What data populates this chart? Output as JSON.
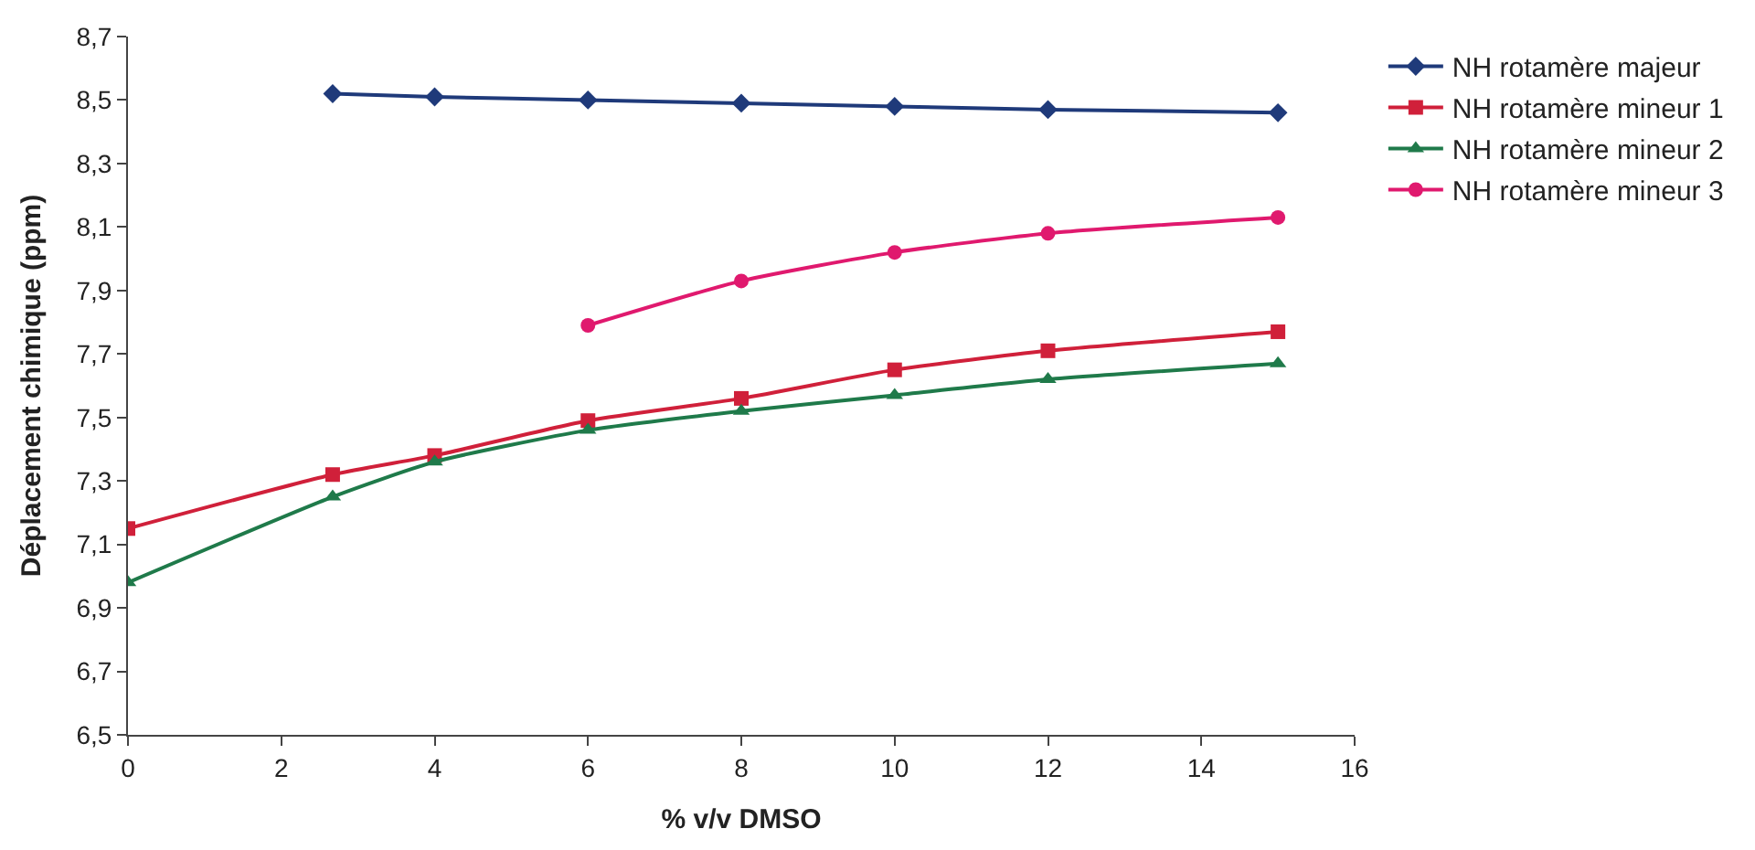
{
  "chart_data": {
    "type": "line",
    "xlabel": "% v/v DMSO",
    "ylabel": "Déplacement chimique (ppm)",
    "xlim": [
      0,
      16
    ],
    "xticks": [
      0,
      2,
      4,
      6,
      8,
      10,
      12,
      14,
      16
    ],
    "ylim": [
      6.5,
      8.7
    ],
    "yticks": [
      {
        "value": 6.5,
        "label": "6,5"
      },
      {
        "value": 6.7,
        "label": "6,7"
      },
      {
        "value": 6.9,
        "label": "6,9"
      },
      {
        "value": 7.1,
        "label": "7,1"
      },
      {
        "value": 7.3,
        "label": "7,3"
      },
      {
        "value": 7.5,
        "label": "7,5"
      },
      {
        "value": 7.7,
        "label": "7,7"
      },
      {
        "value": 7.9,
        "label": "7,9"
      },
      {
        "value": 8.1,
        "label": "8,1"
      },
      {
        "value": 8.3,
        "label": "8,3"
      },
      {
        "value": 8.5,
        "label": "8,5"
      },
      {
        "value": 8.7,
        "label": "8,7"
      }
    ],
    "legend": "right",
    "series": [
      {
        "name": "NH rotamère majeur",
        "color": "#1f3a7a",
        "marker": "diamond",
        "x": [
          2.67,
          4,
          6,
          8,
          10,
          12,
          15
        ],
        "values": [
          8.52,
          8.51,
          8.5,
          8.49,
          8.48,
          8.47,
          8.46
        ]
      },
      {
        "name": "NH rotamère mineur 1",
        "color": "#d0203a",
        "marker": "square",
        "x": [
          0,
          2.67,
          4,
          6,
          8,
          10,
          12,
          15
        ],
        "values": [
          7.15,
          7.32,
          7.38,
          7.49,
          7.56,
          7.65,
          7.71,
          7.77
        ]
      },
      {
        "name": "NH rotamère mineur 2",
        "color": "#1f7a4a",
        "marker": "triangle",
        "x": [
          0,
          2.67,
          4,
          6,
          8,
          10,
          12,
          15
        ],
        "values": [
          6.98,
          7.25,
          7.36,
          7.46,
          7.52,
          7.57,
          7.62,
          7.67
        ]
      },
      {
        "name": "NH rotamère mineur 3",
        "color": "#e0196e",
        "marker": "circle",
        "x": [
          6,
          8,
          10,
          12,
          15
        ],
        "values": [
          7.79,
          7.93,
          8.02,
          8.08,
          8.13
        ]
      }
    ]
  }
}
